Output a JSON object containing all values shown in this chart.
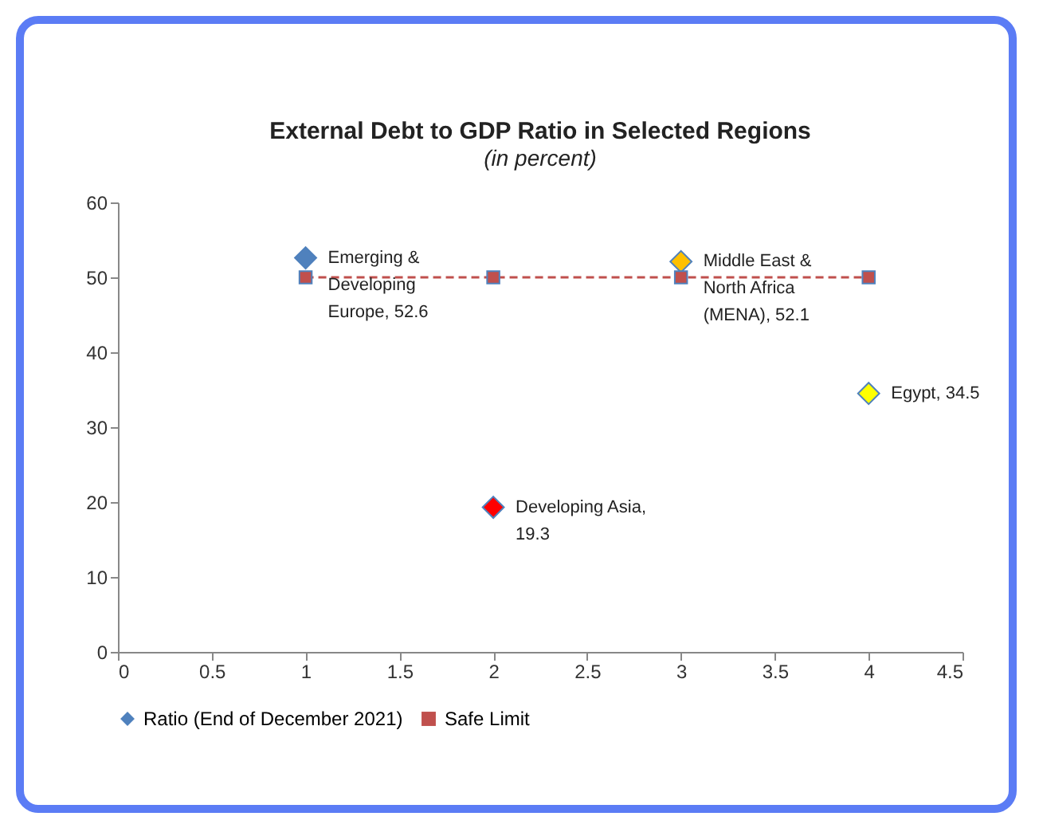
{
  "chart_data": {
    "type": "scatter",
    "title": "External Debt to GDP Ratio in Selected Regions",
    "subtitle": "(in percent)",
    "xlim": [
      0,
      4.5
    ],
    "xticks": [
      0,
      0.5,
      1,
      1.5,
      2,
      2.5,
      3,
      3.5,
      4,
      4.5
    ],
    "ylim": [
      0,
      60
    ],
    "yticks": [
      0,
      10,
      20,
      30,
      40,
      50,
      60
    ],
    "grid": false,
    "legend": "bottom",
    "series": [
      {
        "name": "Ratio (End of December 2021)",
        "type": "scatter",
        "marker": "diamond",
        "color": "#4f81bd",
        "colors": [
          "#4f81bd",
          "#ff0000",
          "#ffc000",
          "#ffff00"
        ],
        "x": [
          1,
          2,
          3,
          4
        ],
        "values": [
          52.6,
          19.3,
          52.1,
          34.5
        ]
      },
      {
        "name": "Safe Limit",
        "type": "line",
        "line_style": "dashed",
        "marker": "square",
        "color": "#c0504d",
        "x": [
          1,
          2,
          3,
          4
        ],
        "values": [
          50,
          50,
          50,
          50
        ]
      }
    ],
    "annotations": [
      {
        "text": "Emerging &\nDeveloping\nEurope, 52.6",
        "x": 1,
        "y": 52.6
      },
      {
        "text": "Developing Asia,\n19.3",
        "x": 2,
        "y": 19.3
      },
      {
        "text": "Middle East &\nNorth Africa\n(MENA), 52.1",
        "x": 3,
        "y": 52.1
      },
      {
        "text": "Egypt, 34.5",
        "x": 4,
        "y": 34.5
      }
    ]
  }
}
